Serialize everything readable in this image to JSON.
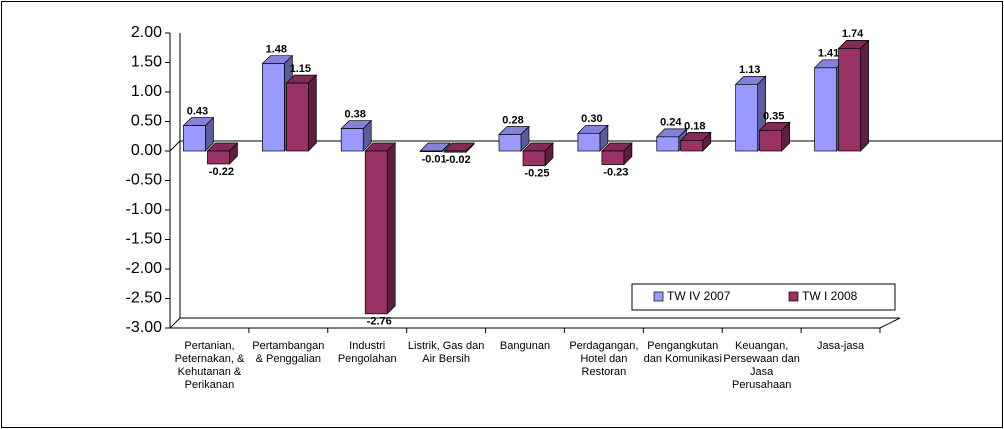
{
  "chart_data": {
    "type": "bar3d",
    "categories": [
      "Pertanian, Peternakan, & Kehutanan & Perikanan",
      "Pertambangan & Penggalian",
      "Industri Pengolahan",
      "Listrik, Gas dan Air Bersih",
      "Bangunan",
      "Perdagangan, Hotel dan Restoran",
      "Pengangkutan dan Komunikasi",
      "Keuangan, Persewaan dan Jasa Perusahaan",
      "Jasa-jasa"
    ],
    "series": [
      {
        "name": "TW IV 2007",
        "color": "#9999ff",
        "values": [
          0.43,
          1.48,
          0.38,
          -0.01,
          0.28,
          0.3,
          0.24,
          1.13,
          1.41
        ],
        "value_labels": [
          "0.43",
          "1.48",
          "0.38",
          "-0.01",
          "0.28",
          "0.30",
          "0.24",
          "1.13",
          "1.41"
        ]
      },
      {
        "name": "TW I 2008",
        "color": "#993366",
        "values": [
          -0.22,
          1.15,
          -2.76,
          -0.02,
          -0.25,
          -0.23,
          0.18,
          0.35,
          1.74
        ],
        "value_labels": [
          "-0.22",
          "1.15",
          "-2.76",
          "-0.02",
          "-0.25",
          "-0.23",
          "0.18",
          "0.35",
          "1.74"
        ]
      }
    ],
    "ylim": [
      -3,
      2
    ],
    "yticks": [
      {
        "value": -3,
        "label": "-3.00"
      },
      {
        "value": -2.5,
        "label": "-2.50"
      },
      {
        "value": -2,
        "label": "-2.00"
      },
      {
        "value": -1.5,
        "label": "-1.50"
      },
      {
        "value": -1,
        "label": "-1.00"
      },
      {
        "value": -0.5,
        "label": "-0.50"
      },
      {
        "value": 0,
        "label": "0.00"
      },
      {
        "value": 0.5,
        "label": "0.50"
      },
      {
        "value": 1,
        "label": "1.00"
      },
      {
        "value": 1.5,
        "label": "1.50"
      },
      {
        "value": 2,
        "label": "2.00"
      }
    ],
    "legend": "bottom-right"
  }
}
